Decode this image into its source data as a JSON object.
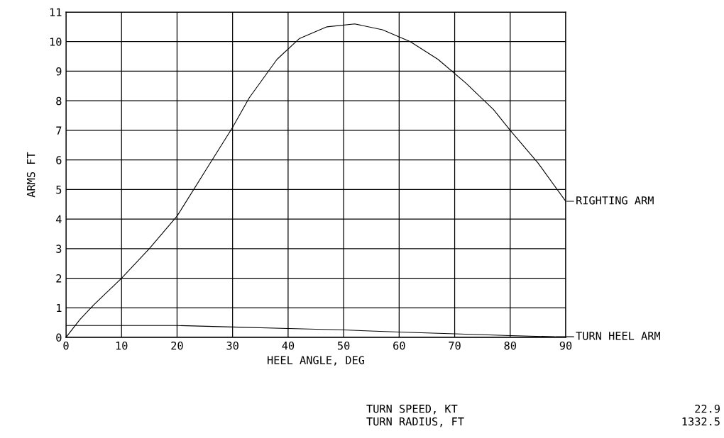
{
  "chart_data": {
    "type": "line",
    "xlabel": "HEEL ANGLE, DEG",
    "ylabel": "ARMS FT",
    "xlim": [
      0,
      90
    ],
    "xticks": [
      0,
      10,
      20,
      30,
      40,
      50,
      60,
      70,
      80,
      90
    ],
    "ylim": [
      0,
      11
    ],
    "yticks": [
      0,
      1,
      2,
      3,
      4,
      5,
      6,
      7,
      8,
      9,
      10,
      11
    ],
    "grid": true,
    "legend": "right",
    "marker": "none",
    "line_style": "solid",
    "series": [
      {
        "name": "RIGHTING ARM",
        "color": "#000000",
        "x": [
          0,
          2.5,
          5,
          10,
          15,
          20,
          25,
          30,
          33,
          38,
          42,
          47,
          52,
          57,
          62,
          67,
          72,
          77,
          80,
          85,
          90
        ],
        "values": [
          0,
          0.6,
          1.1,
          2.0,
          3.0,
          4.1,
          5.6,
          7.1,
          8.1,
          9.4,
          10.1,
          10.5,
          10.6,
          10.4,
          10.0,
          9.4,
          8.6,
          7.7,
          7.0,
          5.9,
          4.6
        ]
      },
      {
        "name": "TURN HEEL ARM",
        "color": "#000000",
        "x": [
          0,
          20,
          30,
          40,
          50,
          60,
          70,
          80,
          88
        ],
        "values": [
          0.4,
          0.4,
          0.35,
          0.3,
          0.25,
          0.18,
          0.12,
          0.06,
          0.02
        ]
      }
    ],
    "annotations": [
      "TURN SPEED, KT",
      "22.9",
      "TURN RADIUS, FT",
      "1332.5"
    ]
  }
}
